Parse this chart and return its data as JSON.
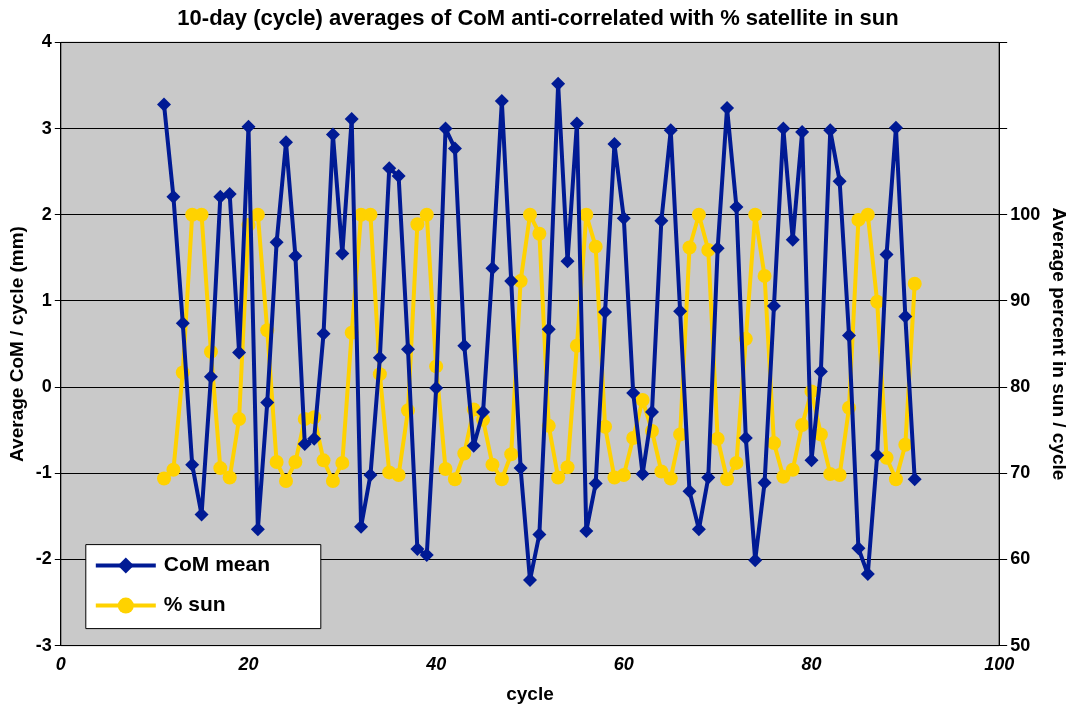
{
  "chart_data": {
    "type": "line",
    "title": "10-day (cycle) averages of CoM anti-correlated with % satellite in sun",
    "xlabel": "cycle",
    "ylabel": "Average CoM / cycle (mm)",
    "y2label": "Average percent in sun / cycle",
    "x": [
      11,
      12,
      13,
      14,
      15,
      16,
      17,
      18,
      19,
      20,
      21,
      22,
      23,
      24,
      25,
      26,
      27,
      28,
      29,
      30,
      31,
      32,
      33,
      34,
      35,
      36,
      37,
      38,
      39,
      40,
      41,
      42,
      43,
      44,
      45,
      46,
      47,
      48,
      49,
      50,
      51,
      52,
      53,
      54,
      55,
      56,
      57,
      58,
      59,
      60,
      61,
      62,
      63,
      64,
      65,
      66,
      67,
      68,
      69,
      70,
      71,
      72,
      73,
      74,
      75,
      76,
      77,
      78,
      79,
      80,
      81,
      82,
      83,
      84,
      85,
      86,
      87,
      88,
      89,
      90,
      91
    ],
    "series": [
      {
        "name": "CoM mean",
        "color": "#001a94",
        "marker": "diamond",
        "values": [
          3.28,
          2.21,
          0.74,
          -0.9,
          -1.48,
          0.12,
          2.21,
          2.24,
          0.4,
          3.02,
          -1.65,
          -0.18,
          1.68,
          2.84,
          1.52,
          -0.66,
          -0.6,
          0.62,
          2.93,
          1.55,
          3.11,
          -1.62,
          -1.02,
          0.34,
          2.54,
          2.45,
          0.44,
          -1.88,
          -1.95,
          -0.01,
          3.0,
          2.77,
          0.48,
          -0.68,
          -0.29,
          1.38,
          3.32,
          1.23,
          -0.94,
          -2.24,
          -1.71,
          0.67,
          3.52,
          1.46,
          3.06,
          -1.67,
          -1.12,
          0.87,
          2.82,
          1.96,
          -0.07,
          -1.01,
          -0.29,
          1.93,
          2.98,
          0.88,
          -1.21,
          -1.65,
          -1.05,
          1.61,
          3.24,
          2.09,
          -0.59,
          -2.01,
          -1.11,
          0.94,
          3.0,
          1.71,
          2.96,
          -0.85,
          0.18,
          2.98,
          2.39,
          0.6,
          -1.87,
          -2.17,
          -0.79,
          1.54,
          3.01,
          0.82,
          -1.07
        ]
      },
      {
        "name": "% sun",
        "color": "#ffd200",
        "marker": "circle",
        "axis": "y2",
        "values": [
          69.4,
          70.4,
          81.7,
          100,
          100,
          84.1,
          70.6,
          69.5,
          76.3,
          98.8,
          100,
          86.6,
          71.3,
          69.1,
          71.3,
          76.3,
          76.5,
          71.5,
          69.1,
          71.2,
          86.3,
          100,
          100,
          81.5,
          70.1,
          69.8,
          77.3,
          98.9,
          100,
          82.4,
          70.5,
          69.3,
          72.3,
          77.4,
          76.2,
          71.0,
          69.3,
          72.2,
          92.3,
          100,
          97.8,
          75.5,
          69.5,
          70.7,
          84.8,
          100,
          96.3,
          75.4,
          69.5,
          69.8,
          74.1,
          78.5,
          74.9,
          70.2,
          69.4,
          74.5,
          96.2,
          100,
          95.9,
          74.0,
          69.3,
          71.2,
          85.6,
          100,
          92.9,
          73.5,
          69.6,
          70.4,
          75.6,
          79.5,
          74.5,
          69.9,
          69.8,
          77.6,
          99.4,
          100,
          89.9,
          71.8,
          69.3,
          73.3,
          92.0
        ]
      }
    ],
    "xlim": [
      0,
      100
    ],
    "xticks": [
      0,
      20,
      40,
      60,
      80,
      100
    ],
    "ylim": [
      -3,
      4
    ],
    "yticks": [
      -3,
      -2,
      -1,
      0,
      1,
      2,
      3,
      4
    ],
    "y2lim": [
      50,
      120
    ],
    "y2ticks": [
      50,
      60,
      70,
      80,
      90,
      100,
      {
        "value": 110,
        "label": null
      },
      {
        "value": 120,
        "label": null
      }
    ],
    "grid": "y",
    "legend": "bottom left",
    "line_style": "solid"
  }
}
